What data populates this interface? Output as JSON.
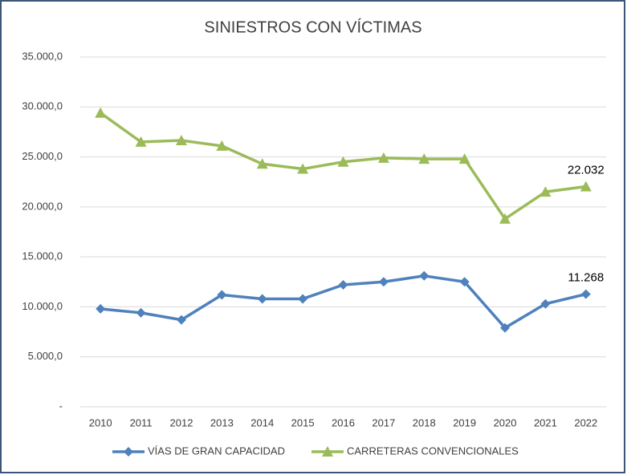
{
  "chart_data": {
    "type": "line",
    "title": "SINIESTROS CON VÍCTIMAS",
    "categories": [
      "2010",
      "2011",
      "2012",
      "2013",
      "2014",
      "2015",
      "2016",
      "2017",
      "2018",
      "2019",
      "2020",
      "2021",
      "2022"
    ],
    "series": [
      {
        "name": "VÍAS DE GRAN CAPACIDAD",
        "color": "#4f81bd",
        "marker": "diamond",
        "values": [
          9800,
          9400,
          8700,
          11200,
          10800,
          10800,
          12200,
          12500,
          13100,
          12500,
          7900,
          10300,
          11268
        ],
        "value_labels": [
          null,
          null,
          null,
          null,
          null,
          null,
          null,
          null,
          null,
          null,
          null,
          null,
          "11.268"
        ]
      },
      {
        "name": "CARRETERAS CONVENCIONALES",
        "color": "#9bbb59",
        "marker": "triangle",
        "values": [
          29400,
          26500,
          26650,
          26100,
          24300,
          23800,
          24500,
          24900,
          24800,
          24800,
          18800,
          21500,
          22032
        ],
        "value_labels": [
          null,
          null,
          null,
          null,
          null,
          null,
          null,
          null,
          null,
          null,
          null,
          null,
          "22.032"
        ]
      }
    ],
    "ylim": [
      0,
      35000
    ],
    "yticks": [
      {
        "value": 0,
        "label": "-"
      },
      {
        "value": 5000,
        "label": "5.000,0"
      },
      {
        "value": 10000,
        "label": "10.000,0"
      },
      {
        "value": 15000,
        "label": "15.000,0"
      },
      {
        "value": 20000,
        "label": "20.000,0"
      },
      {
        "value": 25000,
        "label": "25.000,0"
      },
      {
        "value": 30000,
        "label": "30.000,0"
      },
      {
        "value": 35000,
        "label": "35.000,0"
      }
    ],
    "grid": true,
    "legend": "bottom"
  }
}
